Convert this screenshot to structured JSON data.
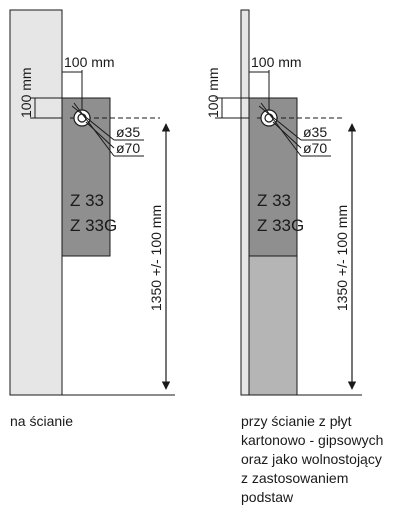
{
  "left_diagram": {
    "horizontal_offset": "100 mm",
    "vertical_offset": "100 mm",
    "diameter_small": "ø35",
    "diameter_large": "ø70",
    "models": [
      "Z 33",
      "Z 33G"
    ],
    "height": "1350 +/- 100 mm",
    "caption": "na ścianie"
  },
  "right_diagram": {
    "horizontal_offset": "100 mm",
    "vertical_offset": "100 mm",
    "diameter_small": "ø35",
    "diameter_large": "ø70",
    "models": [
      "Z 33",
      "Z 33G"
    ],
    "height": "1350 +/- 100 mm",
    "caption_lines": [
      "przy ścianie z płyt",
      "kartonowo - gipsowych",
      "oraz jako wolnostojący",
      "z zastosowaniem podstaw"
    ]
  },
  "colors": {
    "wall": "#e6e6e6",
    "unit": "#8f8f8f",
    "stand": "#b5b5b5",
    "line": "#1a1a1a"
  }
}
